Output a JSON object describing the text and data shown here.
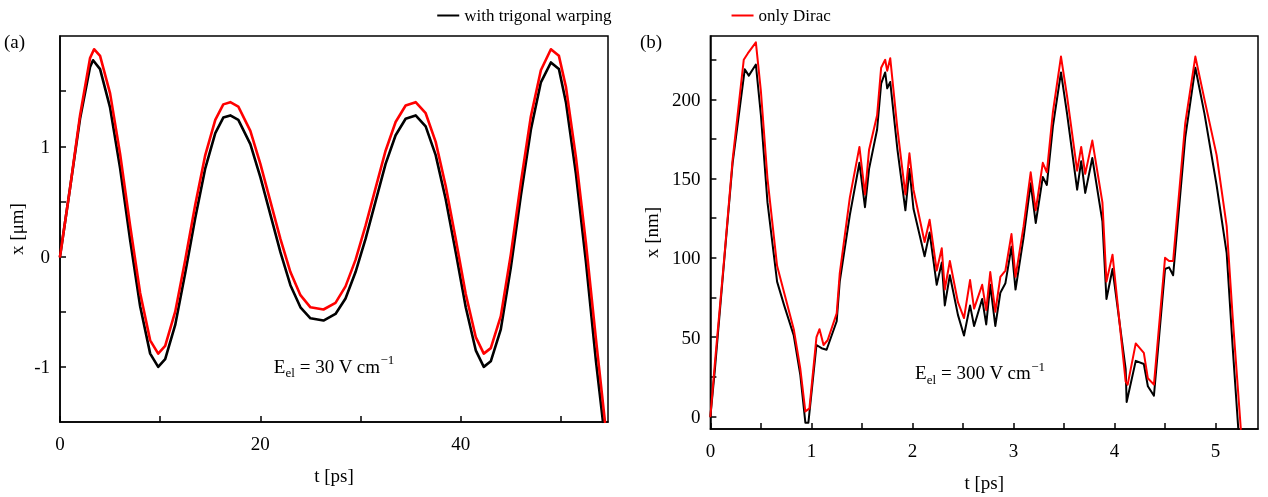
{
  "chart_data": [
    {
      "type": "line",
      "xlabel": "t [ps]",
      "ylabel": "x [μm]",
      "legend": "top",
      "marker": "none",
      "line_style": "solid",
      "annotations": [
        "(a)",
        "E$_{el}$ = 30 V cm$^{−1}$"
      ],
      "xlim": [
        0,
        54.7
      ],
      "xticks": [
        0,
        {
          "value": 10,
          "label": null
        },
        20,
        {
          "value": 30,
          "label": null
        },
        40,
        {
          "value": 50,
          "label": null
        }
      ],
      "ylim": [
        -1.5,
        2
      ],
      "yticks": [
        -1,
        {
          "value": -0.5,
          "label": null
        },
        0,
        {
          "value": 0.5,
          "label": null
        },
        1,
        {
          "value": 1.5,
          "label": null
        }
      ],
      "series": [
        {
          "name": "with trigonal warping",
          "color": "#000000",
          "x": [
            0,
            1,
            2,
            3,
            3.3,
            4,
            5,
            6,
            7,
            8,
            9,
            9.8,
            10.5,
            11.5,
            12.5,
            13.5,
            14.5,
            15.5,
            16.3,
            17,
            17.8,
            19,
            20,
            21,
            22,
            23,
            24,
            25,
            26.3,
            27.5,
            28.5,
            29.5,
            30.5,
            31.5,
            32.5,
            33.5,
            34.5,
            35.5,
            36.5,
            37.5,
            38.5,
            39.5,
            40.5,
            41.5,
            42.3,
            43,
            44,
            45,
            46,
            47,
            48,
            49,
            49.8,
            50.5,
            51.5,
            52.5,
            53.5,
            54.2
          ],
          "values": [
            0,
            0.62,
            1.25,
            1.72,
            1.78,
            1.7,
            1.35,
            0.8,
            0.15,
            -0.45,
            -0.88,
            -1,
            -0.93,
            -0.62,
            -0.15,
            0.35,
            0.8,
            1.12,
            1.26,
            1.28,
            1.24,
            1.02,
            0.72,
            0.38,
            0.04,
            -0.26,
            -0.46,
            -0.56,
            -0.58,
            -0.52,
            -0.38,
            -0.14,
            0.16,
            0.5,
            0.84,
            1.1,
            1.25,
            1.28,
            1.18,
            0.92,
            0.52,
            0.04,
            -0.46,
            -0.85,
            -1,
            -0.95,
            -0.66,
            -0.1,
            0.55,
            1.15,
            1.58,
            1.76,
            1.7,
            1.4,
            0.75,
            -0.05,
            -0.95,
            -1.5
          ]
        },
        {
          "name": "only Dirac",
          "color": "#ff0000",
          "x": [
            0,
            1,
            2,
            3,
            3.4,
            4,
            5,
            6,
            7,
            8,
            9,
            9.8,
            10.5,
            11.5,
            12.5,
            13.5,
            14.5,
            15.5,
            16.3,
            17,
            17.8,
            19,
            20,
            21,
            22,
            23,
            24,
            25,
            26.3,
            27.5,
            28.5,
            29.5,
            30.5,
            31.5,
            32.5,
            33.5,
            34.5,
            35.5,
            36.5,
            37.5,
            38.5,
            39.5,
            40.5,
            41.5,
            42.3,
            43,
            44,
            45,
            46,
            47,
            48,
            49,
            49.8,
            50.5,
            51.5,
            52.5,
            53.5,
            54.4
          ],
          "values": [
            0,
            0.62,
            1.28,
            1.8,
            1.88,
            1.82,
            1.48,
            0.93,
            0.28,
            -0.33,
            -0.76,
            -0.88,
            -0.81,
            -0.5,
            -0.03,
            0.47,
            0.92,
            1.24,
            1.38,
            1.4,
            1.36,
            1.14,
            0.84,
            0.5,
            0.16,
            -0.14,
            -0.35,
            -0.46,
            -0.48,
            -0.42,
            -0.27,
            -0.03,
            0.28,
            0.62,
            0.96,
            1.22,
            1.37,
            1.4,
            1.3,
            1.04,
            0.64,
            0.16,
            -0.34,
            -0.73,
            -0.88,
            -0.83,
            -0.54,
            0.02,
            0.67,
            1.27,
            1.69,
            1.88,
            1.82,
            1.54,
            0.9,
            0.12,
            -0.75,
            -1.5
          ]
        }
      ]
    },
    {
      "type": "line",
      "xlabel": "t [ps]",
      "ylabel": "x [nm]",
      "marker": "none",
      "line_style": "solid",
      "annotations": [
        "(b)",
        "E$_{el}$ = 300 V cm$^{−1}$"
      ],
      "xlim": [
        0,
        5.42
      ],
      "xticks": [
        0,
        {
          "value": 0.5,
          "label": null
        },
        1,
        {
          "value": 1.5,
          "label": null
        },
        2,
        {
          "value": 2.5,
          "label": null
        },
        3,
        {
          "value": 3.5,
          "label": null
        },
        4,
        {
          "value": 4.5,
          "label": null
        },
        5
      ],
      "ylim": [
        -8,
        240
      ],
      "yticks": [
        0,
        {
          "value": 25,
          "label": null
        },
        50,
        {
          "value": 75,
          "label": null
        },
        100,
        {
          "value": 125,
          "label": null
        },
        150,
        {
          "value": 175,
          "label": null
        },
        200,
        {
          "value": 225,
          "label": null
        }
      ],
      "series": [
        {
          "color": "#000000",
          "x": [
            0,
            0.045,
            0.14,
            0.22,
            0.34,
            0.38,
            0.45,
            0.5,
            0.565,
            0.66,
            0.73,
            0.825,
            0.89,
            0.94,
            0.97,
            1.05,
            1.1,
            1.15,
            1.25,
            1.28,
            1.38,
            1.475,
            1.53,
            1.57,
            1.65,
            1.69,
            1.73,
            1.75,
            1.78,
            1.85,
            1.93,
            1.97,
            2.01,
            2.12,
            2.17,
            2.24,
            2.29,
            2.32,
            2.37,
            2.45,
            2.51,
            2.57,
            2.61,
            2.69,
            2.73,
            2.77,
            2.82,
            2.87,
            2.92,
            2.98,
            3.02,
            3.1,
            3.17,
            3.22,
            3.29,
            3.33,
            3.39,
            3.47,
            3.53,
            3.63,
            3.67,
            3.71,
            3.78,
            3.88,
            3.92,
            3.98,
            4.11,
            4.12,
            4.21,
            4.29,
            4.33,
            4.39,
            4.5,
            4.54,
            4.58,
            4.7,
            4.8,
            4.89,
            5.01,
            5.11,
            5.17,
            5.225
          ],
          "values": [
            0,
            30,
            101,
            160,
            219,
            215,
            222,
            190,
            135,
            85,
            70,
            51,
            26,
            -4,
            -4,
            45,
            43,
            42,
            60,
            85,
            127,
            160,
            132,
            156,
            181,
            210,
            217,
            207,
            211,
            169,
            130,
            156,
            131,
            101,
            116,
            83,
            97,
            70,
            89,
            64,
            51,
            70,
            57,
            74,
            58,
            83,
            57,
            78,
            84,
            107,
            80,
            113,
            147,
            122,
            151,
            146,
            183,
            217,
            191,
            143,
            161,
            141,
            163,
            123,
            74,
            93,
            30,
            9,
            35,
            33,
            19,
            13,
            93,
            94,
            89,
            176,
            220,
            191,
            146,
            103,
            43,
            -8
          ]
        },
        {
          "color": "#ff0000",
          "x": [
            0,
            0.045,
            0.14,
            0.22,
            0.33,
            0.37,
            0.45,
            0.5,
            0.565,
            0.66,
            0.73,
            0.825,
            0.89,
            0.94,
            0.98,
            1.05,
            1.08,
            1.12,
            1.16,
            1.25,
            1.28,
            1.38,
            1.475,
            1.53,
            1.57,
            1.65,
            1.69,
            1.73,
            1.75,
            1.78,
            1.85,
            1.93,
            1.97,
            2.01,
            2.12,
            2.17,
            2.24,
            2.29,
            2.32,
            2.37,
            2.45,
            2.51,
            2.57,
            2.61,
            2.69,
            2.73,
            2.77,
            2.82,
            2.87,
            2.92,
            2.98,
            3.02,
            3.1,
            3.17,
            3.22,
            3.29,
            3.33,
            3.39,
            3.47,
            3.53,
            3.63,
            3.67,
            3.71,
            3.78,
            3.88,
            3.92,
            3.98,
            4.11,
            4.13,
            4.21,
            4.29,
            4.33,
            4.39,
            4.5,
            4.54,
            4.58,
            4.7,
            4.8,
            4.89,
            5.01,
            5.11,
            5.17,
            5.25
          ],
          "values": [
            0,
            34,
            102,
            162,
            225,
            229,
            236,
            205,
            150,
            95,
            78,
            55,
            30,
            3,
            5,
            50,
            55,
            45,
            48,
            65,
            90,
            138,
            170,
            140,
            168,
            190,
            220,
            225,
            218,
            226,
            182,
            140,
            166,
            143,
            110,
            124,
            92,
            106,
            80,
            98,
            72,
            62,
            86,
            68,
            83,
            67,
            91,
            66,
            88,
            92,
            115,
            88,
            120,
            154,
            130,
            160,
            154,
            192,
            227,
            202,
            155,
            170,
            153,
            174,
            135,
            85,
            102,
            22,
            20,
            46,
            40,
            24,
            20,
            100,
            98,
            98,
            185,
            227,
            200,
            165,
            120,
            62,
            -8
          ]
        }
      ]
    }
  ]
}
